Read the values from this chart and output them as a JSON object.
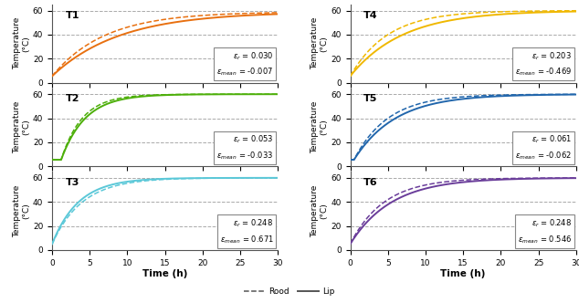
{
  "panels": [
    {
      "label": "T1",
      "color": "#E87010",
      "eps_r": "0.030",
      "eps_mean": "-0.007",
      "T0": 5.5,
      "exp_A": 59.0,
      "exp_tau": 7.0,
      "exp_delay": 0.0,
      "sim_A": 59.0,
      "sim_tau": 9.0,
      "sim_delay": 0.0
    },
    {
      "label": "T4",
      "color": "#F0B800",
      "eps_r": "0.203",
      "eps_mean": "-0.469",
      "T0": 5.5,
      "exp_A": 60.0,
      "exp_tau": 5.0,
      "exp_delay": 0.0,
      "sim_A": 60.0,
      "sim_tau": 7.0,
      "sim_delay": 0.0
    },
    {
      "label": "T2",
      "color": "#4DAF0A",
      "eps_r": "0.053",
      "eps_mean": "-0.033",
      "T0": 5.5,
      "exp_A": 60.0,
      "exp_tau": 2.8,
      "exp_delay": 1.2,
      "sim_A": 60.0,
      "sim_tau": 3.2,
      "sim_delay": 1.2
    },
    {
      "label": "T5",
      "color": "#2166AC",
      "eps_r": "0.061",
      "eps_mean": "-0.062",
      "T0": 5.5,
      "exp_A": 60.0,
      "exp_tau": 4.5,
      "exp_delay": 0.5,
      "sim_A": 60.0,
      "sim_tau": 5.5,
      "sim_delay": 0.5
    },
    {
      "label": "T3",
      "color": "#5BC8D8",
      "eps_r": "0.248",
      "eps_mean": "0.671",
      "T0": 5.0,
      "exp_A": 60.0,
      "exp_tau": 4.0,
      "exp_delay": 0.0,
      "sim_A": 60.0,
      "sim_tau": 3.5,
      "sim_delay": 0.0
    },
    {
      "label": "T6",
      "color": "#6A3D9A",
      "eps_r": "0.248",
      "eps_mean": "0.546",
      "T0": 5.0,
      "exp_A": 60.0,
      "exp_tau": 4.5,
      "exp_delay": 0.0,
      "sim_A": 60.0,
      "sim_tau": 5.5,
      "sim_delay": 0.0
    }
  ],
  "xlim": [
    0,
    30
  ],
  "ylim": [
    0,
    65
  ],
  "yticks": [
    0,
    20,
    40,
    60
  ],
  "xticks": [
    0,
    5,
    10,
    15,
    20,
    25,
    30
  ],
  "xlabel": "Time (h)",
  "ylabel_line1": "Temperature",
  "ylabel_line2": "(°C)",
  "legend_dashed": "Rood",
  "legend_solid": "Lip"
}
